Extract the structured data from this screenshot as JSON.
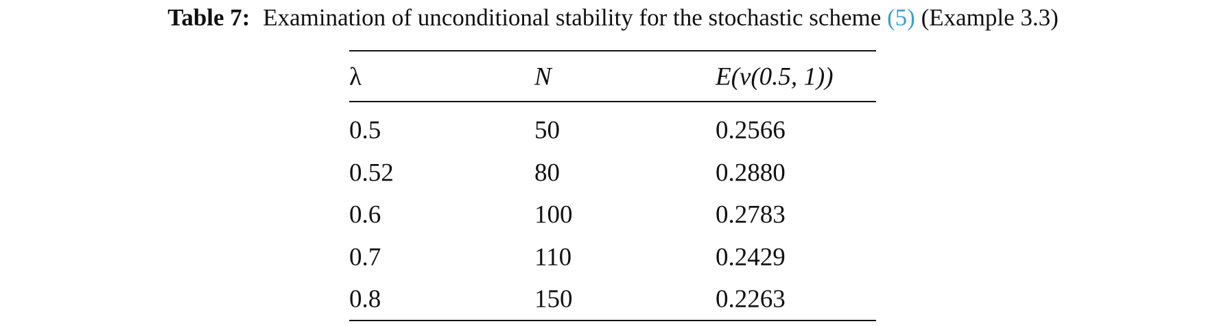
{
  "caption": {
    "label": "Table 7:",
    "text": "Examination of unconditional stability for the stochastic scheme",
    "ref": "(5)",
    "suffix": "(Example 3.3)"
  },
  "table": {
    "header": [
      "λ",
      "N",
      "E(v(0.5, 1))"
    ],
    "rows": [
      [
        "0.5",
        "50",
        "0.2566"
      ],
      [
        "0.52",
        "80",
        "0.2880"
      ],
      [
        "0.6",
        "100",
        "0.2783"
      ],
      [
        "0.7",
        "110",
        "0.2429"
      ],
      [
        "0.8",
        "150",
        "0.2263"
      ]
    ]
  }
}
